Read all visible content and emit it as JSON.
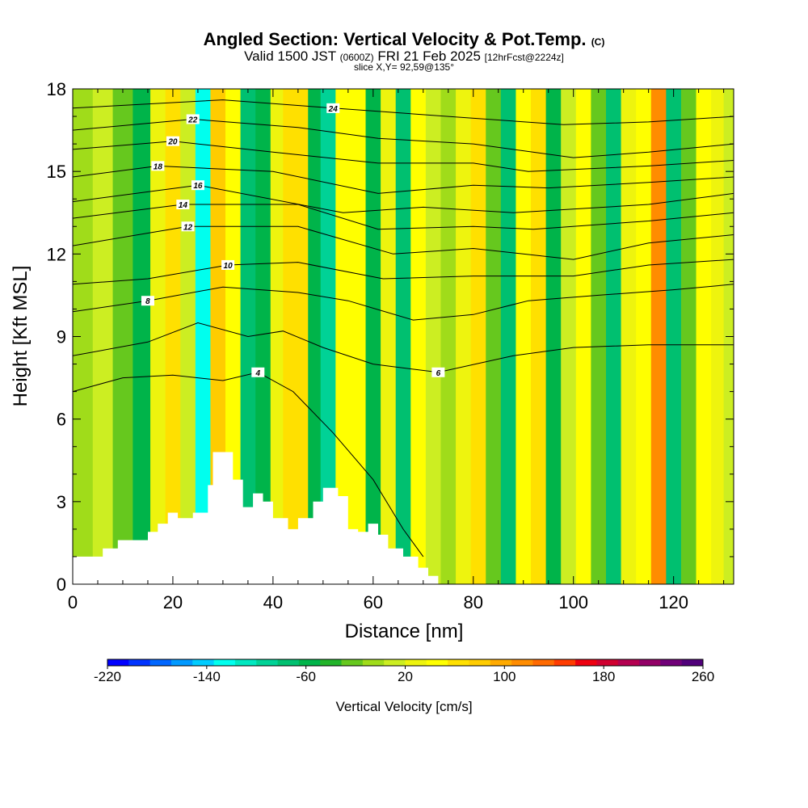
{
  "header": {
    "title": "Angled Section: Vertical Velocity & Pot.Temp.",
    "title_tag": "(C)",
    "valid_prefix": "Valid 1500 JST",
    "valid_utc": "(0600Z)",
    "valid_date": "FRI 21 Feb 2025",
    "forecast_info": "[12hrFcst@2224z]",
    "slice_info": "slice X,Y= 92,59@135°"
  },
  "chart_data": {
    "type": "heatmap",
    "xlabel": "Distance [nm]",
    "ylabel": "Height [Kft MSL]",
    "xlim": [
      0,
      132
    ],
    "ylim": [
      0,
      18
    ],
    "x_ticks": [
      "0",
      "20",
      "40",
      "60",
      "80",
      "100",
      "120"
    ],
    "y_ticks": [
      "0",
      "3",
      "6",
      "9",
      "12",
      "15",
      "18"
    ],
    "colorbar": {
      "label": "Vertical Velocity [cm/s]",
      "tick_labels": [
        "-220",
        "-140",
        "-60",
        "20",
        "100",
        "180",
        "260"
      ],
      "levels": [
        -220,
        260
      ],
      "colors": [
        "#0000ff",
        "#0033ff",
        "#0066ff",
        "#0099ff",
        "#00ccff",
        "#00ffee",
        "#00e8c0",
        "#00d296",
        "#00c070",
        "#00b44a",
        "#22b42a",
        "#66c81e",
        "#a0dc1a",
        "#ccee22",
        "#eef40e",
        "#ffff00",
        "#ffe000",
        "#ffcc00",
        "#ffaa00",
        "#ff8c00",
        "#ff6a00",
        "#ff3c00",
        "#ee0010",
        "#d00030",
        "#b40050",
        "#920066",
        "#700078",
        "#50007a"
      ]
    },
    "vertical_velocity_columns": [
      {
        "x": 2,
        "w": 0
      },
      {
        "x": 6,
        "w": 5
      },
      {
        "x": 10,
        "w": -20
      },
      {
        "x": 14,
        "w": -60
      },
      {
        "x": 17,
        "w": 30
      },
      {
        "x": 20,
        "w": 60
      },
      {
        "x": 23,
        "w": 10
      },
      {
        "x": 26,
        "w": -130
      },
      {
        "x": 29,
        "w": 80
      },
      {
        "x": 32,
        "w": 50
      },
      {
        "x": 35,
        "w": -80
      },
      {
        "x": 38,
        "w": -60
      },
      {
        "x": 41,
        "w": 20
      },
      {
        "x": 43,
        "w": 60
      },
      {
        "x": 46,
        "w": 70
      },
      {
        "x": 48,
        "w": -60
      },
      {
        "x": 51,
        "w": -100
      },
      {
        "x": 54,
        "w": 40
      },
      {
        "x": 57,
        "w": 50
      },
      {
        "x": 60,
        "w": -50
      },
      {
        "x": 63,
        "w": 30
      },
      {
        "x": 66,
        "w": -70
      },
      {
        "x": 69,
        "w": 40
      },
      {
        "x": 72,
        "w": 10
      },
      {
        "x": 75,
        "w": 0
      },
      {
        "x": 78,
        "w": 20
      },
      {
        "x": 81,
        "w": 60
      },
      {
        "x": 84,
        "w": -30
      },
      {
        "x": 87,
        "w": -70
      },
      {
        "x": 90,
        "w": 40
      },
      {
        "x": 93,
        "w": 60
      },
      {
        "x": 96,
        "w": -60
      },
      {
        "x": 99,
        "w": 10
      },
      {
        "x": 102,
        "w": 40
      },
      {
        "x": 105,
        "w": -20
      },
      {
        "x": 108,
        "w": -80
      },
      {
        "x": 111,
        "w": 20
      },
      {
        "x": 114,
        "w": 50
      },
      {
        "x": 117,
        "w": 110
      },
      {
        "x": 120,
        "w": -80
      },
      {
        "x": 123,
        "w": -20
      },
      {
        "x": 126,
        "w": 40
      },
      {
        "x": 129,
        "w": 30
      },
      {
        "x": 131,
        "w": 10
      }
    ],
    "terrain_kft": [
      {
        "x": 0,
        "h": 1.0
      },
      {
        "x": 5,
        "h": 1.0
      },
      {
        "x": 6,
        "h": 1.3
      },
      {
        "x": 9,
        "h": 1.6
      },
      {
        "x": 13,
        "h": 1.6
      },
      {
        "x": 15,
        "h": 1.9
      },
      {
        "x": 17,
        "h": 2.2
      },
      {
        "x": 19,
        "h": 2.6
      },
      {
        "x": 21,
        "h": 2.4
      },
      {
        "x": 24,
        "h": 2.6
      },
      {
        "x": 27,
        "h": 3.6
      },
      {
        "x": 28,
        "h": 4.8
      },
      {
        "x": 31,
        "h": 4.8
      },
      {
        "x": 32,
        "h": 3.8
      },
      {
        "x": 34,
        "h": 2.8
      },
      {
        "x": 36,
        "h": 3.3
      },
      {
        "x": 38,
        "h": 3.0
      },
      {
        "x": 40,
        "h": 2.4
      },
      {
        "x": 43,
        "h": 2.0
      },
      {
        "x": 45,
        "h": 2.4
      },
      {
        "x": 48,
        "h": 3.0
      },
      {
        "x": 50,
        "h": 3.5
      },
      {
        "x": 53,
        "h": 3.2
      },
      {
        "x": 55,
        "h": 2.0
      },
      {
        "x": 57,
        "h": 1.9
      },
      {
        "x": 59,
        "h": 2.2
      },
      {
        "x": 61,
        "h": 1.8
      },
      {
        "x": 63,
        "h": 1.3
      },
      {
        "x": 66,
        "h": 1.0
      },
      {
        "x": 69,
        "h": 0.6
      },
      {
        "x": 71,
        "h": 0.3
      },
      {
        "x": 73,
        "h": 0.0
      },
      {
        "x": 132,
        "h": 0.0
      }
    ],
    "theta_contours": [
      {
        "value": 4,
        "label_pos": [
          37,
          7.7
        ],
        "points": [
          [
            0,
            7.0
          ],
          [
            10,
            7.5
          ],
          [
            20,
            7.6
          ],
          [
            30,
            7.4
          ],
          [
            37,
            7.7
          ],
          [
            44,
            7.0
          ],
          [
            52,
            5.5
          ],
          [
            60,
            3.8
          ],
          [
            66,
            2.0
          ],
          [
            70,
            1.0
          ]
        ]
      },
      {
        "value": 6,
        "label_pos": [
          73,
          7.7
        ],
        "points": [
          [
            0,
            8.3
          ],
          [
            15,
            8.8
          ],
          [
            25,
            9.5
          ],
          [
            35,
            9.0
          ],
          [
            42,
            9.2
          ],
          [
            50,
            8.6
          ],
          [
            60,
            8.0
          ],
          [
            73,
            7.7
          ],
          [
            88,
            8.3
          ],
          [
            100,
            8.6
          ],
          [
            115,
            8.7
          ],
          [
            132,
            8.7
          ]
        ]
      },
      {
        "value": 8,
        "label_pos": [
          15,
          10.3
        ],
        "points": [
          [
            0,
            9.9
          ],
          [
            15,
            10.3
          ],
          [
            30,
            10.8
          ],
          [
            45,
            10.6
          ],
          [
            55,
            10.3
          ],
          [
            68,
            9.6
          ],
          [
            80,
            9.8
          ],
          [
            91,
            10.3
          ],
          [
            105,
            10.5
          ],
          [
            120,
            10.7
          ],
          [
            132,
            10.9
          ]
        ]
      },
      {
        "value": 10,
        "label_pos": [
          31,
          11.6
        ],
        "points": [
          [
            0,
            10.9
          ],
          [
            15,
            11.1
          ],
          [
            31,
            11.6
          ],
          [
            45,
            11.7
          ],
          [
            62,
            11.1
          ],
          [
            80,
            11.2
          ],
          [
            100,
            11.2
          ],
          [
            115,
            11.6
          ],
          [
            132,
            11.8
          ]
        ]
      },
      {
        "value": 12,
        "label_pos": [
          23,
          13.0
        ],
        "points": [
          [
            0,
            12.3
          ],
          [
            23,
            13.0
          ],
          [
            45,
            13.0
          ],
          [
            64,
            12.0
          ],
          [
            80,
            12.2
          ],
          [
            100,
            11.8
          ],
          [
            115,
            12.4
          ],
          [
            132,
            12.7
          ]
        ]
      },
      {
        "value": 14,
        "label_pos": [
          22,
          13.8
        ],
        "points": [
          [
            0,
            13.3
          ],
          [
            22,
            13.8
          ],
          [
            45,
            13.8
          ],
          [
            61,
            12.9
          ],
          [
            80,
            13.0
          ],
          [
            92,
            12.9
          ],
          [
            115,
            13.2
          ],
          [
            132,
            13.5
          ]
        ]
      },
      {
        "value": 16,
        "label_pos": [
          25,
          14.5
        ],
        "points": [
          [
            0,
            13.9
          ],
          [
            25,
            14.5
          ],
          [
            54,
            13.5
          ],
          [
            70,
            13.7
          ],
          [
            88,
            13.5
          ],
          [
            115,
            13.8
          ],
          [
            132,
            14.2
          ]
        ]
      },
      {
        "value": 18,
        "label_pos": [
          17,
          15.2
        ],
        "points": [
          [
            0,
            14.8
          ],
          [
            17,
            15.2
          ],
          [
            40,
            15.0
          ],
          [
            61,
            14.2
          ],
          [
            80,
            14.5
          ],
          [
            95,
            14.4
          ],
          [
            115,
            14.6
          ],
          [
            132,
            14.8
          ]
        ]
      },
      {
        "value": 20,
        "label_pos": [
          20,
          16.1
        ],
        "points": [
          [
            0,
            15.8
          ],
          [
            20,
            16.1
          ],
          [
            40,
            15.7
          ],
          [
            61,
            15.3
          ],
          [
            80,
            15.3
          ],
          [
            91,
            15.0
          ],
          [
            115,
            15.2
          ],
          [
            132,
            15.4
          ]
        ]
      },
      {
        "value": 22,
        "label_pos": [
          24,
          16.9
        ],
        "points": [
          [
            0,
            16.5
          ],
          [
            24,
            16.9
          ],
          [
            45,
            16.6
          ],
          [
            61,
            16.2
          ],
          [
            80,
            16.0
          ],
          [
            100,
            15.5
          ],
          [
            115,
            15.7
          ],
          [
            132,
            16.0
          ]
        ]
      },
      {
        "value": 24,
        "label_pos": [
          52,
          17.3
        ],
        "points": [
          [
            0,
            17.3
          ],
          [
            30,
            17.6
          ],
          [
            52,
            17.3
          ],
          [
            75,
            17.0
          ],
          [
            98,
            16.7
          ],
          [
            115,
            16.8
          ],
          [
            132,
            17.0
          ]
        ]
      }
    ]
  }
}
